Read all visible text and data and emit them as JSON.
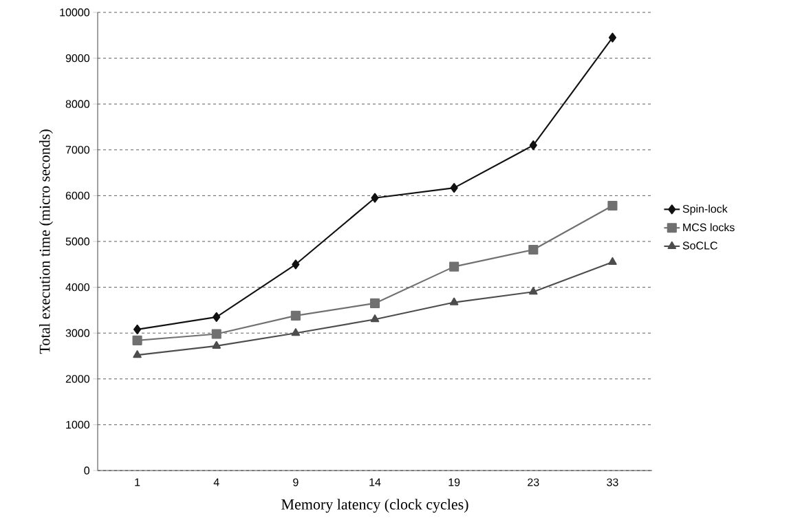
{
  "chart_data": {
    "type": "line",
    "xlabel": "Memory latency (clock cycles)",
    "ylabel": "Total execution time (micro seconds)",
    "categories": [
      "1",
      "4",
      "9",
      "14",
      "19",
      "23",
      "33"
    ],
    "series": [
      {
        "name": "Spin-lock",
        "color": "#111111",
        "marker": "diamond",
        "values": [
          3080,
          3350,
          4500,
          5950,
          6170,
          7100,
          9450
        ]
      },
      {
        "name": "MCS locks",
        "color": "#707070",
        "marker": "square",
        "values": [
          2840,
          2980,
          3380,
          3650,
          4450,
          4820,
          5780
        ]
      },
      {
        "name": "SoCLC",
        "color": "#4d4d4d",
        "marker": "triangle",
        "values": [
          2520,
          2720,
          3000,
          3300,
          3670,
          3900,
          4550
        ]
      }
    ],
    "ylim": [
      0,
      10000
    ],
    "yticks": [
      0,
      1000,
      2000,
      3000,
      4000,
      5000,
      6000,
      7000,
      8000,
      9000,
      10000
    ],
    "grid": "y",
    "legend": "right",
    "line_style": "solid"
  }
}
